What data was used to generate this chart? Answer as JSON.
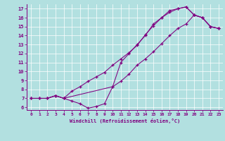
{
  "xlabel": "Windchill (Refroidissement éolien,°C)",
  "bg_color": "#b2e0e0",
  "line_color": "#800080",
  "xlim": [
    -0.5,
    23.5
  ],
  "ylim": [
    5.7,
    17.5
  ],
  "xticks": [
    0,
    1,
    2,
    3,
    4,
    5,
    6,
    7,
    8,
    9,
    10,
    11,
    12,
    13,
    14,
    15,
    16,
    17,
    18,
    19,
    20,
    21,
    22,
    23
  ],
  "yticks": [
    6,
    7,
    8,
    9,
    10,
    11,
    12,
    13,
    14,
    15,
    16,
    17
  ],
  "line1_x": [
    0,
    1,
    2,
    3,
    4,
    5,
    6,
    7,
    8,
    9,
    10,
    11,
    12,
    13,
    14,
    15,
    16,
    17,
    18,
    19,
    20,
    21,
    22,
    23
  ],
  "line1_y": [
    7.0,
    7.0,
    7.0,
    7.3,
    7.0,
    6.7,
    6.4,
    5.9,
    6.1,
    6.4,
    8.3,
    11.0,
    12.0,
    13.0,
    14.0,
    15.3,
    16.0,
    16.8,
    17.0,
    17.2,
    16.3,
    16.0,
    15.0,
    14.8
  ],
  "line2_x": [
    0,
    1,
    2,
    3,
    4,
    5,
    6,
    7,
    8,
    9,
    10,
    11,
    12,
    13,
    14,
    15,
    16,
    17,
    18,
    19,
    20,
    21,
    22,
    23
  ],
  "line2_y": [
    7.0,
    7.0,
    7.0,
    7.3,
    7.0,
    7.8,
    8.3,
    8.9,
    9.4,
    9.9,
    10.7,
    11.4,
    12.1,
    12.9,
    14.1,
    15.1,
    16.0,
    16.6,
    17.0,
    17.2,
    16.3,
    16.0,
    15.0,
    14.8
  ],
  "line3_x": [
    0,
    1,
    2,
    3,
    4,
    10,
    11,
    12,
    13,
    14,
    15,
    16,
    17,
    18,
    19,
    20,
    21,
    22,
    23
  ],
  "line3_y": [
    7.0,
    7.0,
    7.0,
    7.3,
    7.0,
    8.3,
    8.9,
    9.7,
    10.7,
    11.4,
    12.2,
    13.1,
    14.0,
    14.8,
    15.3,
    16.3,
    16.0,
    15.0,
    14.8
  ]
}
